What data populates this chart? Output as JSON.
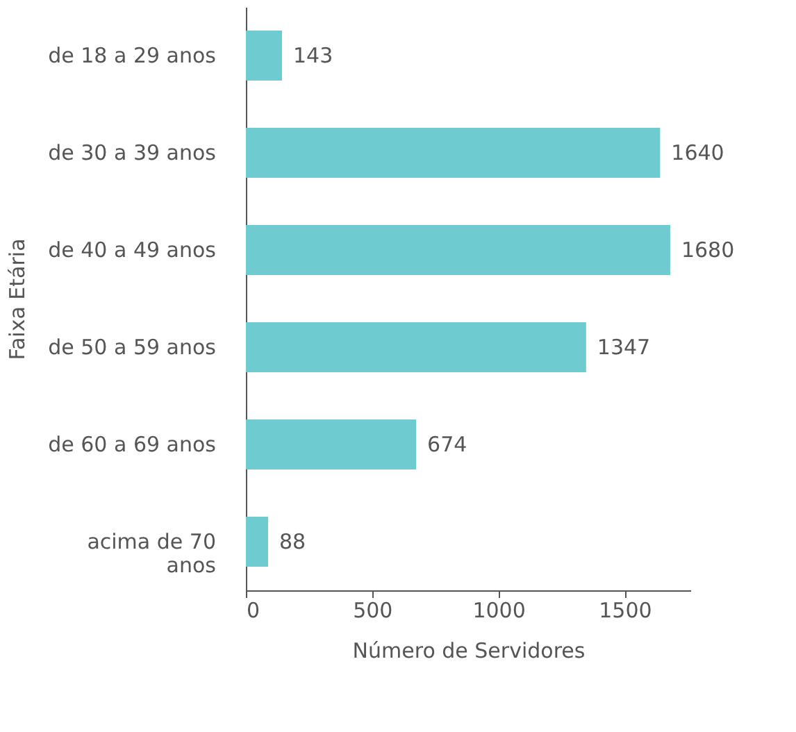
{
  "chart_data": {
    "type": "bar",
    "orientation": "horizontal",
    "xlabel": "Número de Servidores",
    "ylabel": "Faixa Etária",
    "categories": [
      "de 18 a 29 anos",
      "de 30 a 39 anos",
      "de 40 a 49 anos",
      "de 50 a 59 anos",
      "de 60 a 69 anos",
      "acima de 70 anos"
    ],
    "values": [
      143,
      1640,
      1680,
      1347,
      674,
      88
    ],
    "color": "#6ecbcf",
    "data_labels": true,
    "xlim": [
      0,
      1760
    ],
    "xticks": [
      0,
      500,
      1000,
      1500
    ],
    "grid": false
  }
}
